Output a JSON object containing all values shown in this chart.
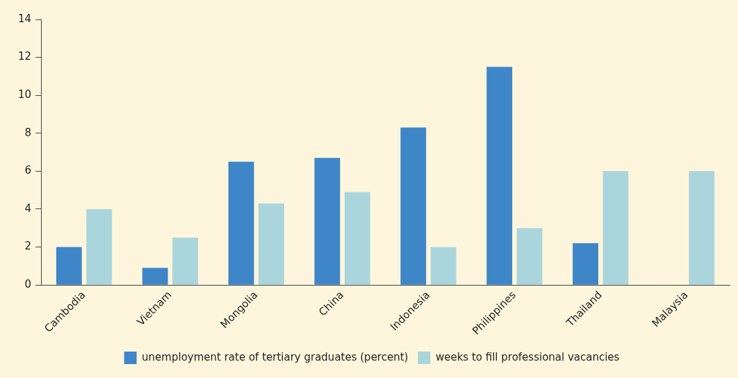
{
  "chart_data": {
    "type": "bar",
    "categories": [
      "Cambodia",
      "Vietnam",
      "Mongolia",
      "China",
      "Indonesia",
      "Philippines",
      "Thailand",
      "Malaysia"
    ],
    "series": [
      {
        "name": "unemployment rate of tertiary graduates (percent)",
        "color": "#3f86c8",
        "values": [
          2.0,
          0.9,
          6.5,
          6.7,
          8.3,
          11.5,
          2.2,
          null
        ]
      },
      {
        "name": "weeks to fill professional vacancies",
        "color": "#abd5dc",
        "values": [
          4.0,
          2.5,
          4.3,
          4.9,
          2.0,
          3.0,
          6.0,
          6.0
        ]
      }
    ],
    "ylim": [
      0,
      14
    ],
    "yticks": [
      0,
      2,
      4,
      6,
      8,
      10,
      12,
      14
    ],
    "grid": false,
    "legend": "bottom"
  }
}
